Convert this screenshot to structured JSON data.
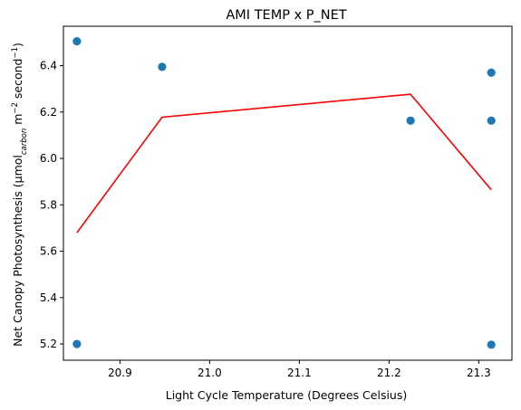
{
  "chart_data": {
    "type": "scatter",
    "title": "AMI TEMP x P_NET",
    "xlabel": "Light Cycle Temperature (Degrees Celsius)",
    "ylabel": {
      "prefix": "Net Canopy Photosynthesis (µmol",
      "sub": "carbon",
      "mid1": " m",
      "sup1": "−2",
      "mid2": " second",
      "sup2": "−1",
      "suffix": ")"
    },
    "xlim": [
      20.837,
      21.337
    ],
    "ylim": [
      5.13,
      6.57
    ],
    "xticks": [
      20.9,
      21.0,
      21.1,
      21.2,
      21.3
    ],
    "xtick_labels": [
      "20.9",
      "21.0",
      "21.1",
      "21.2",
      "21.3"
    ],
    "yticks": [
      5.2,
      5.4,
      5.6,
      5.8,
      6.0,
      6.2,
      6.4
    ],
    "ytick_labels": [
      "5.2",
      "5.4",
      "5.6",
      "5.8",
      "6.0",
      "6.2",
      "6.4"
    ],
    "grid": false,
    "series": [
      {
        "kind": "scatter",
        "color": "#1f77b4",
        "points": [
          {
            "x": 20.852,
            "y": 6.505
          },
          {
            "x": 20.852,
            "y": 5.2
          },
          {
            "x": 20.947,
            "y": 6.395
          },
          {
            "x": 21.224,
            "y": 6.163
          },
          {
            "x": 21.314,
            "y": 6.37
          },
          {
            "x": 21.314,
            "y": 6.163
          },
          {
            "x": 21.314,
            "y": 5.197
          }
        ]
      },
      {
        "kind": "line",
        "color": "#ff0000",
        "points": [
          {
            "x": 20.852,
            "y": 5.68
          },
          {
            "x": 20.947,
            "y": 6.178
          },
          {
            "x": 21.224,
            "y": 6.277
          },
          {
            "x": 21.314,
            "y": 5.865
          }
        ]
      }
    ]
  }
}
